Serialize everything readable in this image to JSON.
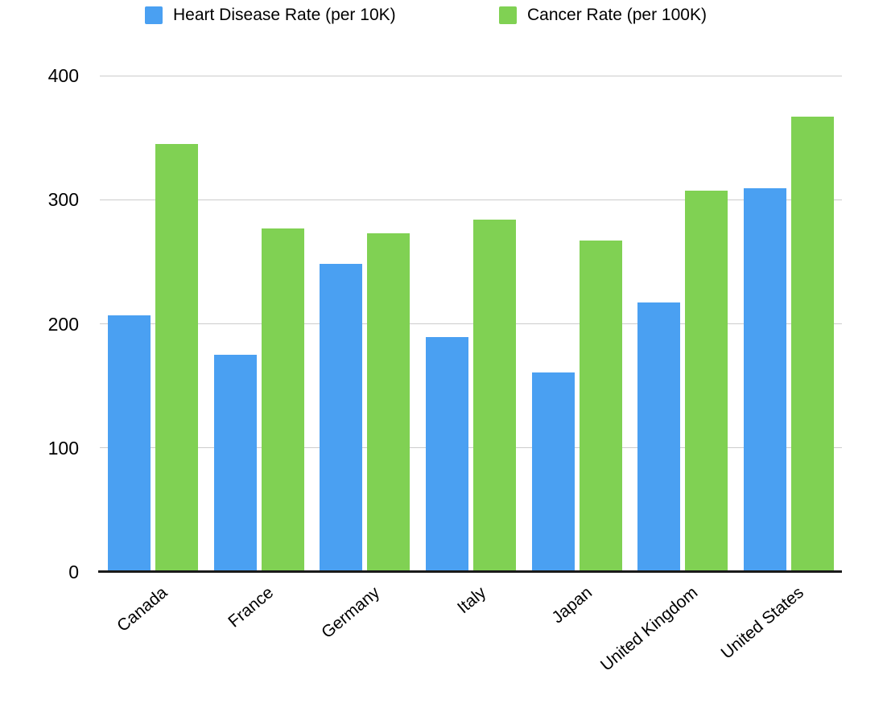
{
  "chart_data": {
    "type": "bar",
    "title": "",
    "categories": [
      "Canada",
      "France",
      "Germany",
      "Italy",
      "Japan",
      "United Kingdom",
      "United States"
    ],
    "series": [
      {
        "name": "Heart Disease Rate (per 10K)",
        "color": "#4AA0F2",
        "values": [
          207,
          175,
          248,
          189,
          161,
          217,
          309
        ]
      },
      {
        "name": "Cancer Rate (per 100K)",
        "color": "#80D153",
        "values": [
          345,
          277,
          273,
          284,
          267,
          307,
          367
        ]
      }
    ],
    "xlabel": "",
    "ylabel": "",
    "ylim": [
      0,
      400
    ],
    "yticks": [
      0,
      100,
      200,
      300,
      400
    ],
    "grid": true,
    "legend_position": "top",
    "axis_color": "#1a1a1a",
    "gridline_color": "#cccccc"
  }
}
